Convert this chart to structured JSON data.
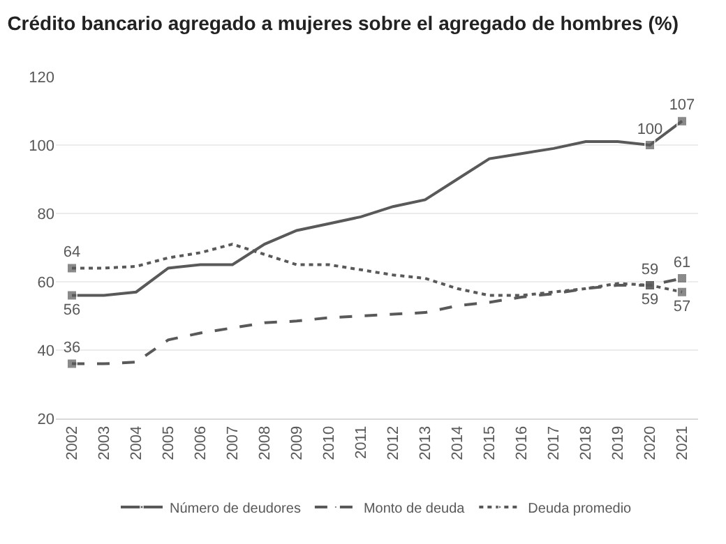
{
  "chart_data": {
    "type": "line",
    "title": "Crédito bancario agregado a mujeres sobre el agregado de hombres (%)",
    "categories": [
      "2002",
      "2003",
      "2004",
      "2005",
      "2006",
      "2007",
      "2008",
      "2009",
      "2010",
      "2011",
      "2012",
      "2013",
      "2014",
      "2015",
      "2016",
      "2017",
      "2018",
      "2019",
      "2020",
      "2021"
    ],
    "series": [
      {
        "name": "Número de deudores",
        "color": "#595959",
        "line_style": "solid",
        "values": [
          56,
          56,
          57,
          64,
          65,
          65,
          71,
          75,
          77,
          79,
          82,
          84,
          90,
          96,
          97.5,
          99,
          101,
          101,
          100,
          107
        ],
        "value_labels": [
          "56",
          null,
          null,
          null,
          null,
          null,
          null,
          null,
          null,
          null,
          null,
          null,
          null,
          null,
          null,
          null,
          null,
          null,
          "100",
          "107"
        ]
      },
      {
        "name": "Monto de deuda",
        "color": "#595959",
        "line_style": "dashed",
        "values": [
          36,
          36,
          36.5,
          43,
          45,
          46.5,
          48,
          48.5,
          49.5,
          50,
          50.5,
          51,
          53,
          54,
          55.5,
          56.5,
          58,
          59,
          59,
          61
        ],
        "value_labels": [
          "36",
          null,
          null,
          null,
          null,
          null,
          null,
          null,
          null,
          null,
          null,
          null,
          null,
          null,
          null,
          null,
          null,
          null,
          "59",
          "61"
        ]
      },
      {
        "name": "Deuda promedio",
        "color": "#595959",
        "line_style": "dotted",
        "values": [
          64,
          64,
          64.5,
          67,
          68.5,
          71,
          68,
          65,
          65,
          63.5,
          62,
          61,
          58,
          56,
          56,
          57,
          58,
          59.5,
          59,
          57
        ],
        "value_labels": [
          "64",
          null,
          null,
          null,
          null,
          null,
          null,
          null,
          null,
          null,
          null,
          null,
          null,
          null,
          null,
          null,
          null,
          null,
          "59",
          "57"
        ]
      }
    ],
    "ylim": [
      20,
      120
    ],
    "yticks": [
      20,
      40,
      60,
      80,
      100,
      120
    ],
    "grid": "y",
    "legend": "bottom"
  }
}
